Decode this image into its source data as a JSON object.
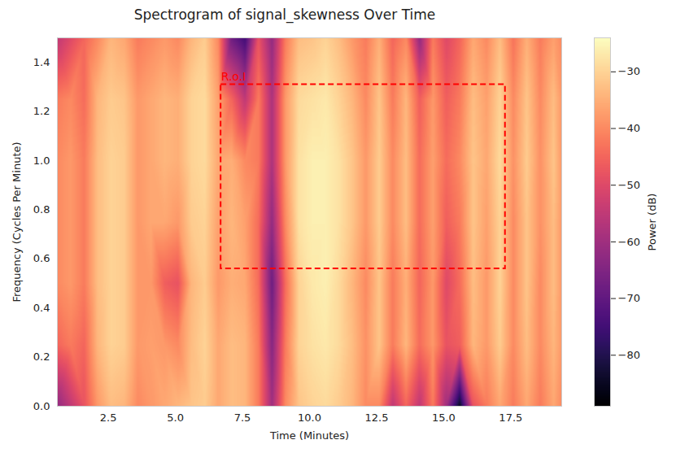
{
  "chart_data": {
    "type": "heatmap",
    "title": "Spectrogram of signal_skewness Over Time",
    "x_label": "Time (Minutes)",
    "y_label": "Frequency (Cycles Per Minute)",
    "color": "magma",
    "xlim": [
      0.6,
      19.4
    ],
    "ylim": [
      0,
      1.5
    ],
    "xticks": [
      2.5,
      {
        "value": 5,
        "label": "5.0"
      },
      7.5,
      {
        "value": 10,
        "label": "10.0"
      },
      12.5,
      {
        "value": 15,
        "label": "15.0"
      },
      17.5
    ],
    "yticks": [
      {
        "value": 0,
        "label": "0.0"
      },
      0.2,
      0.4,
      0.6,
      0.8,
      {
        "value": 1,
        "label": "1.0"
      },
      1.2,
      1.4
    ],
    "x": [
      0.6,
      1.1,
      1.6,
      2.1,
      2.6,
      3.1,
      3.6,
      4.1,
      4.6,
      5.1,
      5.6,
      6.1,
      6.6,
      7.1,
      7.6,
      8.1,
      8.6,
      9.1,
      9.6,
      10.1,
      10.6,
      11.1,
      11.6,
      12.1,
      12.6,
      13.1,
      13.6,
      14.1,
      14.6,
      15.1,
      15.6,
      16.1,
      16.6,
      17.1,
      17.6,
      18.1,
      18.6,
      19.1,
      19.4
    ],
    "y": [
      0,
      0.25,
      0.5,
      0.75,
      1.0,
      1.25,
      1.5
    ],
    "z": [
      [
        -62,
        -45,
        -40,
        -40,
        -40,
        -42,
        -55
      ],
      [
        -55,
        -42,
        -38,
        -38,
        -38,
        -40,
        -50
      ],
      [
        -48,
        -45,
        -42,
        -42,
        -42,
        -44,
        -45
      ],
      [
        -38,
        -34,
        -33,
        -33,
        -33,
        -34,
        -40
      ],
      [
        -33,
        -30,
        -30,
        -30,
        -30,
        -31,
        -34
      ],
      [
        -34,
        -31,
        -31,
        -31,
        -31,
        -32,
        -36
      ],
      [
        -40,
        -38,
        -38,
        -38,
        -38,
        -38,
        -42
      ],
      [
        -38,
        -37,
        -38,
        -36,
        -36,
        -36,
        -40
      ],
      [
        -36,
        -38,
        -46,
        -36,
        -34,
        -34,
        -38
      ],
      [
        -34,
        -40,
        -48,
        -38,
        -35,
        -35,
        -40
      ],
      [
        -32,
        -33,
        -34,
        -31,
        -30,
        -30,
        -34
      ],
      [
        -31,
        -30,
        -31,
        -30,
        -29,
        -29,
        -31
      ],
      [
        -36,
        -36,
        -38,
        -37,
        -36,
        -37,
        -40
      ],
      [
        -33,
        -33,
        -35,
        -34,
        -35,
        -45,
        -68
      ],
      [
        -34,
        -34,
        -36,
        -37,
        -40,
        -55,
        -75
      ],
      [
        -42,
        -42,
        -44,
        -44,
        -42,
        -42,
        -48
      ],
      [
        -60,
        -64,
        -68,
        -62,
        -58,
        -58,
        -62
      ],
      [
        -40,
        -42,
        -44,
        -40,
        -38,
        -38,
        -42
      ],
      [
        -32,
        -30,
        -30,
        -28,
        -28,
        -29,
        -33
      ],
      [
        -30,
        -28,
        -27,
        -26,
        -26,
        -28,
        -32
      ],
      [
        -29,
        -27,
        -26,
        -26,
        -26,
        -27,
        -30
      ],
      [
        -31,
        -29,
        -29,
        -28,
        -28,
        -30,
        -33
      ],
      [
        -34,
        -33,
        -34,
        -32,
        -32,
        -34,
        -38
      ],
      [
        -40,
        -39,
        -40,
        -38,
        -38,
        -40,
        -42
      ],
      [
        -40,
        -32,
        -32,
        -31,
        -31,
        -32,
        -35
      ],
      [
        -55,
        -42,
        -42,
        -40,
        -40,
        -42,
        -45
      ],
      [
        -45,
        -34,
        -35,
        -33,
        -33,
        -34,
        -40
      ],
      [
        -55,
        -44,
        -45,
        -44,
        -44,
        -46,
        -62
      ],
      [
        -42,
        -38,
        -38,
        -37,
        -37,
        -38,
        -42
      ],
      [
        -60,
        -48,
        -50,
        -46,
        -44,
        -46,
        -50
      ],
      [
        -85,
        -46,
        -44,
        -42,
        -40,
        -42,
        -45
      ],
      [
        -48,
        -34,
        -33,
        -32,
        -32,
        -33,
        -36
      ],
      [
        -42,
        -38,
        -38,
        -37,
        -36,
        -37,
        -40
      ],
      [
        -36,
        -31,
        -30,
        -30,
        -29,
        -30,
        -33
      ],
      [
        -42,
        -40,
        -40,
        -40,
        -39,
        -40,
        -43
      ],
      [
        -36,
        -33,
        -32,
        -32,
        -31,
        -32,
        -35
      ],
      [
        -42,
        -40,
        -40,
        -39,
        -39,
        -40,
        -42
      ],
      [
        -36,
        -34,
        -33,
        -33,
        -32,
        -33,
        -37
      ],
      [
        -40,
        -38,
        -38,
        -38,
        -38,
        -38,
        -40
      ]
    ],
    "colorbar": {
      "label": "Power (dB)",
      "clim": [
        -89,
        -24
      ],
      "ticks": [
        -80,
        -70,
        -60,
        -50,
        -40,
        -30
      ]
    },
    "annotations": [
      {
        "text": "R.o.I",
        "x1": 6.7,
        "x2": 17.3,
        "y1": 0.56,
        "y2": 1.31,
        "color": "red",
        "line_style": "dashed"
      }
    ]
  }
}
